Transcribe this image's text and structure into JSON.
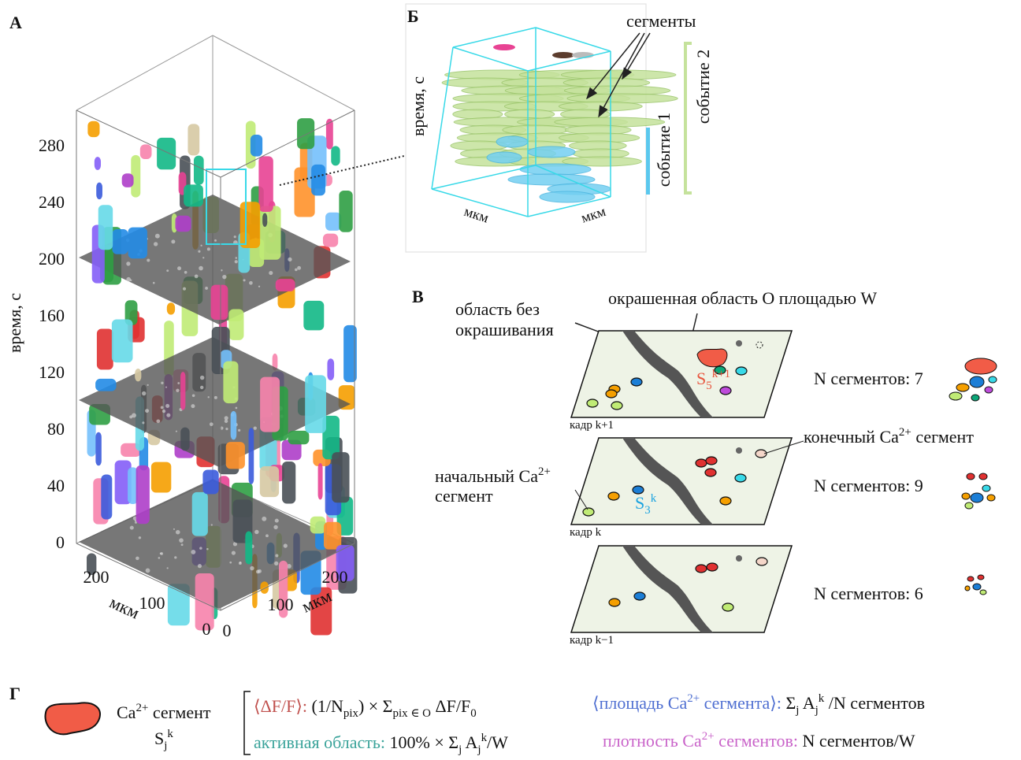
{
  "panel_a": {
    "label": "А",
    "y_axis_label": "время, с",
    "y_ticks": [
      "280",
      "240",
      "200",
      "160",
      "120",
      "80",
      "40",
      "0"
    ],
    "x_axis_label": "мкм",
    "x_ticks": [
      "200",
      "100",
      "0"
    ],
    "z_axis_label": "мкм",
    "z_ticks": [
      "0",
      "100",
      "200"
    ]
  },
  "panel_b": {
    "label": "Б",
    "annotation": "сегменты",
    "y_axis_label": "время, с",
    "x_axis_label": "мкм",
    "z_axis_label": "мкм",
    "event_1": "событие 1",
    "event_2": "событие 2"
  },
  "panel_c": {
    "label": "В",
    "unstained_area": [
      "область без",
      "окрашивания"
    ],
    "stained_area": "окрашенная область O площадью W",
    "end_segment": [
      {
        "text": "конечный Ca"
      },
      {
        "sup": "2+"
      },
      {
        "text": " сегмент"
      }
    ],
    "start_segment": [
      [
        {
          "text": "начальный Ca"
        },
        {
          "sup": "2+"
        }
      ],
      [
        {
          "text": "сегмент"
        }
      ]
    ],
    "frames": [
      {
        "label": "кадр k+1",
        "count": "N сегментов: 7",
        "segment_label": [
          {
            "text": "S"
          },
          {
            "sub": "5"
          },
          {
            "sup": "k+1"
          }
        ]
      },
      {
        "label": "кадр k",
        "count": "N сегментов: 9",
        "segment_label": [
          {
            "text": "S"
          },
          {
            "sub": "3"
          },
          {
            "sup": "k"
          }
        ]
      },
      {
        "label": "кадр k−1",
        "count": "N сегментов: 6"
      }
    ]
  },
  "panel_d": {
    "label": "Г",
    "segment_name": [
      {
        "text": "Ca"
      },
      {
        "sup": "2+"
      },
      {
        "text": " сегмент"
      }
    ],
    "segment_symbol": [
      {
        "text": "S"
      },
      {
        "sub": "j"
      },
      {
        "sup": "k"
      }
    ],
    "formulas": [
      {
        "name": [
          {
            "text": "⟨ΔF/F⟩:"
          }
        ],
        "color": "#c0504d",
        "expression": [
          {
            "text": " (1/N"
          },
          {
            "sub": "pix"
          },
          {
            "text": ") × Σ"
          },
          {
            "sub": "pix ∈ O"
          },
          {
            "text": " ΔF/F"
          },
          {
            "sub": "0"
          }
        ]
      },
      {
        "name": [
          {
            "text": "активная область:"
          }
        ],
        "color": "#3aa39a",
        "expression": [
          {
            "text": " 100% × Σ"
          },
          {
            "sub": "j"
          },
          {
            "text": " A"
          },
          {
            "sub": "j"
          },
          {
            "sup": "k"
          },
          {
            "text": "/W"
          }
        ]
      },
      {
        "name": [
          {
            "text": "⟨площадь Ca"
          },
          {
            "sup": "2+"
          },
          {
            "text": " сегмента⟩:"
          }
        ],
        "color": "#4f6fd1",
        "expression": [
          {
            "text": " Σ"
          },
          {
            "sub": "j"
          },
          {
            "text": " A"
          },
          {
            "sub": "j"
          },
          {
            "sup": "k"
          },
          {
            "text": " /N сегментов"
          }
        ]
      },
      {
        "name": [
          {
            "text": "плотность Ca"
          },
          {
            "sup": "2+"
          },
          {
            "text": " сегментов:"
          }
        ],
        "color": "#c963c9",
        "expression": [
          {
            "text": " N сегментов/W"
          }
        ]
      }
    ]
  }
}
